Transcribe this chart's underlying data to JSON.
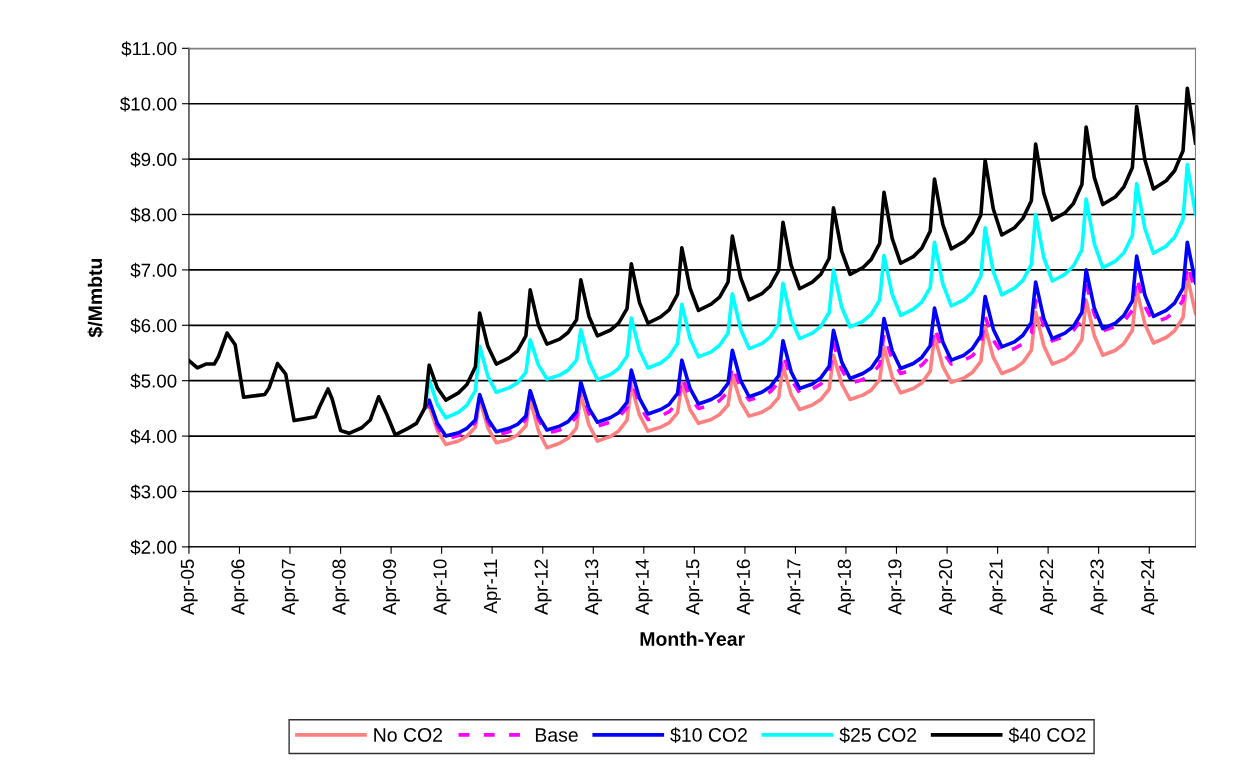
{
  "chart_data": {
    "type": "line",
    "xlabel": "Month-Year",
    "ylabel": "$/Mmbtu",
    "xlim": [
      "2005-04",
      "2025-03"
    ],
    "ylim": [
      2,
      11
    ],
    "yticks": [
      {
        "value": 2,
        "label": "$2.00"
      },
      {
        "value": 3,
        "label": "$3.00"
      },
      {
        "value": 4,
        "label": "$4.00"
      },
      {
        "value": 5,
        "label": "$5.00"
      },
      {
        "value": 6,
        "label": "$6.00"
      },
      {
        "value": 7,
        "label": "$7.00"
      },
      {
        "value": 8,
        "label": "$8.00"
      },
      {
        "value": 9,
        "label": "$9.00"
      },
      {
        "value": 10,
        "label": "$10.00"
      },
      {
        "value": 11,
        "label": "$11.00"
      }
    ],
    "xticks": [
      {
        "value": "2005-04",
        "label": "Apr-05"
      },
      {
        "value": "2006-04",
        "label": "Apr-06"
      },
      {
        "value": "2007-04",
        "label": "Apr-07"
      },
      {
        "value": "2008-04",
        "label": "Apr-08"
      },
      {
        "value": "2009-04",
        "label": "Apr-09"
      },
      {
        "value": "2010-04",
        "label": "Apr-10"
      },
      {
        "value": "2011-04",
        "label": "Apr-11"
      },
      {
        "value": "2012-04",
        "label": "Apr-12"
      },
      {
        "value": "2013-04",
        "label": "Apr-13"
      },
      {
        "value": "2014-04",
        "label": "Apr-14"
      },
      {
        "value": "2015-04",
        "label": "Apr-15"
      },
      {
        "value": "2016-04",
        "label": "Apr-16"
      },
      {
        "value": "2017-04",
        "label": "Apr-17"
      },
      {
        "value": "2018-04",
        "label": "Apr-18"
      },
      {
        "value": "2019-04",
        "label": "Apr-19"
      },
      {
        "value": "2020-04",
        "label": "Apr-20"
      },
      {
        "value": "2021-04",
        "label": "Apr-21"
      },
      {
        "value": "2022-04",
        "label": "Apr-22"
      },
      {
        "value": "2023-04",
        "label": "Apr-23"
      },
      {
        "value": "2024-04",
        "label": "Apr-24"
      }
    ],
    "grid": "y",
    "legend": "bottom",
    "marker": "none",
    "series": [
      {
        "name": "No CO2",
        "color": "#ff8080",
        "line_style": "solid",
        "x": [
          "2009-12",
          "2010-01",
          "2010-03",
          "2010-05",
          "2010-08",
          "2010-10",
          "2010-12",
          "2011-01",
          "2011-03",
          "2011-05",
          "2011-08",
          "2011-10",
          "2011-12",
          "2012-01",
          "2012-03",
          "2012-05",
          "2012-08",
          "2012-10",
          "2012-12",
          "2013-01",
          "2013-03",
          "2013-05",
          "2013-08",
          "2013-10",
          "2013-12",
          "2014-01",
          "2014-03",
          "2014-05",
          "2014-08",
          "2014-10",
          "2014-12",
          "2015-01",
          "2015-03",
          "2015-05",
          "2015-08",
          "2015-10",
          "2015-12",
          "2016-01",
          "2016-03",
          "2016-05",
          "2016-08",
          "2016-10",
          "2016-12",
          "2017-01",
          "2017-03",
          "2017-05",
          "2017-08",
          "2017-10",
          "2017-12",
          "2018-01",
          "2018-03",
          "2018-05",
          "2018-08",
          "2018-10",
          "2018-12",
          "2019-01",
          "2019-03",
          "2019-05",
          "2019-08",
          "2019-10",
          "2019-12",
          "2020-01",
          "2020-03",
          "2020-05",
          "2020-08",
          "2020-10",
          "2020-12",
          "2021-01",
          "2021-03",
          "2021-05",
          "2021-08",
          "2021-10",
          "2021-12",
          "2022-01",
          "2022-03",
          "2022-05",
          "2022-08",
          "2022-10",
          "2022-12",
          "2023-01",
          "2023-03",
          "2023-05",
          "2023-08",
          "2023-10",
          "2023-12",
          "2024-01",
          "2024-03",
          "2024-05",
          "2024-08",
          "2024-10",
          "2024-12",
          "2025-01",
          "2025-03"
        ],
        "values": [
          4.51,
          4.55,
          4.1,
          3.85,
          3.91,
          4.0,
          4.16,
          4.66,
          4.15,
          3.88,
          3.94,
          4.02,
          4.18,
          4.66,
          4.09,
          3.79,
          3.87,
          3.96,
          4.15,
          4.75,
          4.2,
          3.91,
          3.99,
          4.09,
          4.29,
          4.91,
          4.38,
          4.09,
          4.16,
          4.24,
          4.42,
          4.95,
          4.48,
          4.23,
          4.3,
          4.39,
          4.56,
          5.1,
          4.62,
          4.36,
          4.43,
          4.52,
          4.7,
          5.26,
          4.75,
          4.48,
          4.56,
          4.66,
          4.85,
          5.46,
          4.94,
          4.66,
          4.74,
          4.83,
          5.02,
          5.61,
          5.07,
          4.78,
          4.86,
          4.96,
          5.17,
          5.8,
          5.26,
          4.97,
          5.05,
          5.15,
          5.35,
          5.97,
          5.42,
          5.13,
          5.22,
          5.33,
          5.55,
          6.24,
          5.63,
          5.3,
          5.39,
          5.51,
          5.74,
          6.45,
          5.81,
          5.46,
          5.55,
          5.67,
          5.91,
          6.64,
          6.02,
          5.68,
          5.78,
          5.9,
          6.14,
          6.88,
          6.22
        ]
      },
      {
        "name": "Base",
        "color": "#ff00ff",
        "line_style": "dashed",
        "x": [
          "2009-12",
          "2010-01",
          "2010-03",
          "2010-05",
          "2010-08",
          "2010-10",
          "2010-12",
          "2011-01",
          "2011-03",
          "2011-05",
          "2011-08",
          "2011-10",
          "2011-12",
          "2012-01",
          "2012-03",
          "2012-05",
          "2012-08",
          "2012-10",
          "2012-12",
          "2013-01",
          "2013-03",
          "2013-05",
          "2013-08",
          "2013-10",
          "2013-12",
          "2014-01",
          "2014-03",
          "2014-05",
          "2014-08",
          "2014-10",
          "2014-12",
          "2015-01",
          "2015-03",
          "2015-05",
          "2015-08",
          "2015-10",
          "2015-12",
          "2016-01",
          "2016-03",
          "2016-05",
          "2016-08",
          "2016-10",
          "2016-12",
          "2017-01",
          "2017-03",
          "2017-05",
          "2017-08",
          "2017-10",
          "2017-12",
          "2018-01",
          "2018-03",
          "2018-05",
          "2018-08",
          "2018-10",
          "2018-12",
          "2019-01",
          "2019-03",
          "2019-05",
          "2019-08",
          "2019-10",
          "2019-12",
          "2020-01",
          "2020-03",
          "2020-05",
          "2020-08",
          "2020-10",
          "2020-12",
          "2021-01",
          "2021-03",
          "2021-05",
          "2021-08",
          "2021-10",
          "2021-12",
          "2022-01",
          "2022-03",
          "2022-05",
          "2022-08",
          "2022-10",
          "2022-12",
          "2023-01",
          "2023-03",
          "2023-05",
          "2023-08",
          "2023-10",
          "2023-12",
          "2024-01",
          "2024-03",
          "2024-05",
          "2024-08",
          "2024-10",
          "2024-12",
          "2025-01",
          "2025-03"
        ],
        "values": [
          4.51,
          4.58,
          4.17,
          3.95,
          4.01,
          4.09,
          4.24,
          4.7,
          4.26,
          4.02,
          4.08,
          4.15,
          4.3,
          4.75,
          4.3,
          4.05,
          4.11,
          4.19,
          4.35,
          4.85,
          4.41,
          4.18,
          4.25,
          4.34,
          4.51,
          5.05,
          4.56,
          4.3,
          4.36,
          4.44,
          4.59,
          5.07,
          4.7,
          4.5,
          4.56,
          4.64,
          4.8,
          5.28,
          4.87,
          4.65,
          4.72,
          4.8,
          4.97,
          5.49,
          5.03,
          4.78,
          4.85,
          4.94,
          5.12,
          5.67,
          5.2,
          4.95,
          5.02,
          5.11,
          5.29,
          5.85,
          5.38,
          5.13,
          5.2,
          5.28,
          5.45,
          5.97,
          5.53,
          5.3,
          5.37,
          5.45,
          5.63,
          6.16,
          5.73,
          5.5,
          5.58,
          5.67,
          5.86,
          6.45,
          5.98,
          5.72,
          5.8,
          5.91,
          6.11,
          6.75,
          6.2,
          5.9,
          5.98,
          6.07,
          6.27,
          6.87,
          6.34,
          6.05,
          6.13,
          6.24,
          6.45,
          7.11,
          6.6
        ]
      },
      {
        "name": "$10 CO2",
        "color": "#0000ff",
        "line_style": "solid",
        "x": [
          "2009-12",
          "2010-01",
          "2010-03",
          "2010-05",
          "2010-08",
          "2010-10",
          "2010-12",
          "2011-01",
          "2011-03",
          "2011-05",
          "2011-08",
          "2011-10",
          "2011-12",
          "2012-01",
          "2012-03",
          "2012-05",
          "2012-08",
          "2012-10",
          "2012-12",
          "2013-01",
          "2013-03",
          "2013-05",
          "2013-08",
          "2013-10",
          "2013-12",
          "2014-01",
          "2014-03",
          "2014-05",
          "2014-08",
          "2014-10",
          "2014-12",
          "2015-01",
          "2015-03",
          "2015-05",
          "2015-08",
          "2015-10",
          "2015-12",
          "2016-01",
          "2016-03",
          "2016-05",
          "2016-08",
          "2016-10",
          "2016-12",
          "2017-01",
          "2017-03",
          "2017-05",
          "2017-08",
          "2017-10",
          "2017-12",
          "2018-01",
          "2018-03",
          "2018-05",
          "2018-08",
          "2018-10",
          "2018-12",
          "2019-01",
          "2019-03",
          "2019-05",
          "2019-08",
          "2019-10",
          "2019-12",
          "2020-01",
          "2020-03",
          "2020-05",
          "2020-08",
          "2020-10",
          "2020-12",
          "2021-01",
          "2021-03",
          "2021-05",
          "2021-08",
          "2021-10",
          "2021-12",
          "2022-01",
          "2022-03",
          "2022-05",
          "2022-08",
          "2022-10",
          "2022-12",
          "2023-01",
          "2023-03",
          "2023-05",
          "2023-08",
          "2023-10",
          "2023-12",
          "2024-01",
          "2024-03",
          "2024-05",
          "2024-08",
          "2024-10",
          "2024-12",
          "2025-01",
          "2025-03"
        ],
        "values": [
          4.51,
          4.65,
          4.23,
          4.0,
          4.06,
          4.14,
          4.29,
          4.75,
          4.31,
          4.08,
          4.14,
          4.21,
          4.36,
          4.82,
          4.36,
          4.11,
          4.18,
          4.26,
          4.44,
          4.97,
          4.5,
          4.25,
          4.33,
          4.42,
          4.61,
          5.19,
          4.68,
          4.4,
          4.48,
          4.57,
          4.77,
          5.37,
          4.86,
          4.58,
          4.66,
          4.75,
          4.95,
          5.55,
          5.0,
          4.71,
          4.79,
          4.89,
          5.09,
          5.72,
          5.16,
          4.86,
          4.94,
          5.05,
          5.26,
          5.91,
          5.34,
          5.04,
          5.13,
          5.23,
          5.45,
          6.12,
          5.54,
          5.22,
          5.31,
          5.42,
          5.63,
          6.31,
          5.7,
          5.37,
          5.46,
          5.58,
          5.81,
          6.52,
          5.93,
          5.61,
          5.7,
          5.82,
          6.05,
          6.78,
          6.12,
          5.76,
          5.86,
          5.98,
          6.23,
          7.0,
          6.31,
          5.94,
          6.04,
          6.18,
          6.44,
          7.25,
          6.54,
          6.16,
          6.27,
          6.4,
          6.67,
          7.5,
          6.77
        ]
      },
      {
        "name": "$25 CO2",
        "color": "#00ffff",
        "line_style": "solid",
        "x": [
          "2009-12",
          "2010-01",
          "2010-03",
          "2010-05",
          "2010-08",
          "2010-10",
          "2010-12",
          "2011-01",
          "2011-03",
          "2011-05",
          "2011-08",
          "2011-10",
          "2011-12",
          "2012-01",
          "2012-03",
          "2012-05",
          "2012-08",
          "2012-10",
          "2012-12",
          "2013-01",
          "2013-03",
          "2013-05",
          "2013-08",
          "2013-10",
          "2013-12",
          "2014-01",
          "2014-03",
          "2014-05",
          "2014-08",
          "2014-10",
          "2014-12",
          "2015-01",
          "2015-03",
          "2015-05",
          "2015-08",
          "2015-10",
          "2015-12",
          "2016-01",
          "2016-03",
          "2016-05",
          "2016-08",
          "2016-10",
          "2016-12",
          "2017-01",
          "2017-03",
          "2017-05",
          "2017-08",
          "2017-10",
          "2017-12",
          "2018-01",
          "2018-03",
          "2018-05",
          "2018-08",
          "2018-10",
          "2018-12",
          "2019-01",
          "2019-03",
          "2019-05",
          "2019-08",
          "2019-10",
          "2019-12",
          "2020-01",
          "2020-03",
          "2020-05",
          "2020-08",
          "2020-10",
          "2020-12",
          "2021-01",
          "2021-03",
          "2021-05",
          "2021-08",
          "2021-10",
          "2021-12",
          "2022-01",
          "2022-03",
          "2022-05",
          "2022-08",
          "2022-10",
          "2022-12",
          "2023-01",
          "2023-03",
          "2023-05",
          "2023-08",
          "2023-10",
          "2023-12",
          "2024-01",
          "2024-03",
          "2024-05",
          "2024-08",
          "2024-10",
          "2024-12",
          "2025-01",
          "2025-03"
        ],
        "values": [
          4.51,
          5.02,
          4.57,
          4.33,
          4.43,
          4.56,
          4.82,
          5.62,
          5.08,
          4.79,
          4.87,
          4.96,
          5.15,
          5.74,
          5.28,
          5.03,
          5.1,
          5.19,
          5.37,
          5.92,
          5.34,
          5.02,
          5.11,
          5.22,
          5.44,
          6.13,
          5.55,
          5.23,
          5.32,
          5.44,
          5.67,
          6.38,
          5.76,
          5.43,
          5.52,
          5.64,
          5.86,
          6.57,
          5.93,
          5.58,
          5.67,
          5.79,
          6.03,
          6.76,
          6.11,
          5.76,
          5.86,
          5.98,
          6.23,
          7.0,
          6.33,
          5.97,
          6.07,
          6.2,
          6.46,
          7.26,
          6.56,
          6.18,
          6.29,
          6.42,
          6.68,
          7.5,
          6.75,
          6.35,
          6.46,
          6.6,
          6.89,
          7.76,
          6.97,
          6.55,
          6.67,
          6.81,
          7.1,
          8.0,
          7.22,
          6.8,
          6.92,
          7.07,
          7.36,
          8.28,
          7.47,
          7.04,
          7.16,
          7.31,
          7.62,
          8.56,
          7.74,
          7.3,
          7.43,
          7.59,
          7.91,
          8.9,
          8.01
        ]
      },
      {
        "name": "$40 CO2",
        "color": "#000000",
        "line_style": "solid",
        "x": [
          "2005-04",
          "2005-06",
          "2005-08",
          "2005-10",
          "2005-11",
          "2006-01",
          "2006-03",
          "2006-05",
          "2006-08",
          "2006-10",
          "2006-11",
          "2007-01",
          "2007-03",
          "2007-05",
          "2007-08",
          "2007-10",
          "2007-11",
          "2008-01",
          "2008-02",
          "2008-04",
          "2008-06",
          "2008-09",
          "2008-11",
          "2009-01",
          "2009-03",
          "2009-05",
          "2009-08",
          "2009-10",
          "2009-12",
          "2010-01",
          "2010-03",
          "2010-05",
          "2010-08",
          "2010-10",
          "2010-12",
          "2011-01",
          "2011-03",
          "2011-05",
          "2011-08",
          "2011-10",
          "2011-12",
          "2012-01",
          "2012-03",
          "2012-05",
          "2012-08",
          "2012-10",
          "2012-12",
          "2013-01",
          "2013-03",
          "2013-05",
          "2013-08",
          "2013-10",
          "2013-12",
          "2014-01",
          "2014-03",
          "2014-05",
          "2014-08",
          "2014-10",
          "2014-12",
          "2015-01",
          "2015-03",
          "2015-05",
          "2015-08",
          "2015-10",
          "2015-12",
          "2016-01",
          "2016-03",
          "2016-05",
          "2016-08",
          "2016-10",
          "2016-12",
          "2017-01",
          "2017-03",
          "2017-05",
          "2017-08",
          "2017-10",
          "2017-12",
          "2018-01",
          "2018-03",
          "2018-05",
          "2018-08",
          "2018-10",
          "2018-12",
          "2019-01",
          "2019-03",
          "2019-05",
          "2019-08",
          "2019-10",
          "2019-12",
          "2020-01",
          "2020-03",
          "2020-05",
          "2020-08",
          "2020-10",
          "2020-12",
          "2021-01",
          "2021-03",
          "2021-05",
          "2021-08",
          "2021-10",
          "2021-12",
          "2022-01",
          "2022-03",
          "2022-05",
          "2022-08",
          "2022-10",
          "2022-12",
          "2023-01",
          "2023-03",
          "2023-05",
          "2023-08",
          "2023-10",
          "2023-12",
          "2024-01",
          "2024-03",
          "2024-05",
          "2024-08",
          "2024-10",
          "2024-12",
          "2025-01",
          "2025-03"
        ],
        "values": [
          5.36,
          5.23,
          5.3,
          5.3,
          5.44,
          5.86,
          5.65,
          4.7,
          4.73,
          4.75,
          4.87,
          5.31,
          5.12,
          4.28,
          4.32,
          4.35,
          4.53,
          4.85,
          4.66,
          4.1,
          4.05,
          4.15,
          4.29,
          4.71,
          4.39,
          4.02,
          4.14,
          4.23,
          4.51,
          5.28,
          4.87,
          4.65,
          4.78,
          4.93,
          5.25,
          6.22,
          5.62,
          5.3,
          5.41,
          5.54,
          5.81,
          6.64,
          6.0,
          5.66,
          5.75,
          5.87,
          6.1,
          6.82,
          6.16,
          5.81,
          5.91,
          6.04,
          6.3,
          7.11,
          6.41,
          6.04,
          6.15,
          6.28,
          6.56,
          7.4,
          6.67,
          6.27,
          6.38,
          6.51,
          6.78,
          7.61,
          6.86,
          6.46,
          6.57,
          6.71,
          6.99,
          7.86,
          7.08,
          6.66,
          6.78,
          6.92,
          7.21,
          8.12,
          7.34,
          6.92,
          7.04,
          7.19,
          7.48,
          8.4,
          7.57,
          7.12,
          7.24,
          7.39,
          7.7,
          8.64,
          7.82,
          7.38,
          7.51,
          7.67,
          7.99,
          8.98,
          8.1,
          7.63,
          7.76,
          7.93,
          8.25,
          9.27,
          8.38,
          7.9,
          8.03,
          8.2,
          8.54,
          9.58,
          8.67,
          8.18,
          8.32,
          8.5,
          8.85,
          9.95,
          8.98,
          8.46,
          8.61,
          8.79,
          9.15,
          10.28,
          9.29
        ]
      }
    ]
  }
}
